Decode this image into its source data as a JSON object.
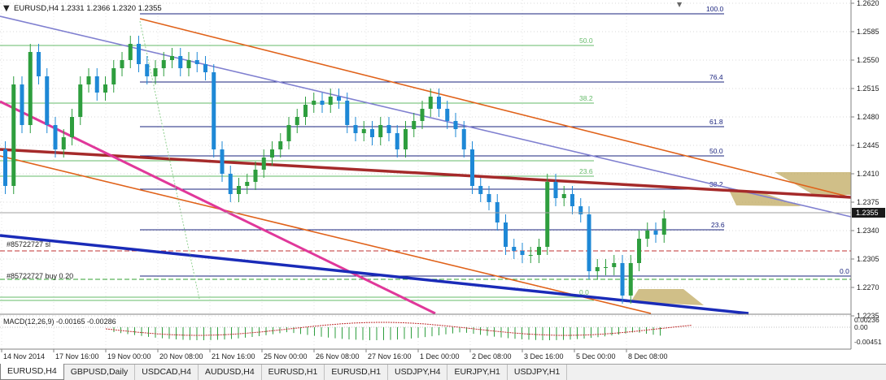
{
  "window": {
    "symbol_header": "EURUSD,H4  1.2331 1.2366 1.2320 1.2355"
  },
  "price_axis": {
    "labels": [
      "1.2620",
      "1.2585",
      "1.2550",
      "1.2515",
      "1.2480",
      "1.2445",
      "1.2410",
      "1.2375",
      "1.2340",
      "1.2305",
      "1.2270",
      "1.2235"
    ],
    "current_price": "1.2355"
  },
  "fibonacci": {
    "upper_levels": [
      {
        "label": "100.0",
        "color": "#1a237e"
      },
      {
        "label": "50.0",
        "color": "#66bb6a"
      },
      {
        "label": "76.4",
        "color": "#1a237e"
      },
      {
        "label": "38.2",
        "color": "#66bb6a"
      },
      {
        "label": "61.8",
        "color": "#1a237e"
      },
      {
        "label": "50.0",
        "color": "#1a237e"
      },
      {
        "label": "23.6",
        "color": "#66bb6a"
      },
      {
        "label": "38.2",
        "color": "#1a237e"
      },
      {
        "label": "23.6",
        "color": "#1a237e"
      },
      {
        "label": "0.0",
        "color": "#66bb6a"
      },
      {
        "label": "0.0",
        "color": "#1a237e"
      }
    ],
    "right_zero_label": "0.0"
  },
  "orders": {
    "sl_label": "#85722727 sl",
    "buy_label": "#85722727 buy 0.20"
  },
  "macd": {
    "label": "MACD(12,26,9) -0.00165 -0.00286",
    "axis_labels": [
      "0.00236",
      "0.00",
      "-0.00451"
    ]
  },
  "time_axis": {
    "labels": [
      "14 Nov 2014",
      "17 Nov 16:00",
      "19 Nov 00:00",
      "20 Nov 08:00",
      "21 Nov 16:00",
      "25 Nov 00:00",
      "26 Nov 08:00",
      "27 Nov 16:00",
      "1 Dec 00:00",
      "2 Dec 08:00",
      "3 Dec 16:00",
      "5 Dec 00:00",
      "8 Dec 08:00"
    ]
  },
  "tabs": [
    "EURUSD,H4",
    "GBPUSD,Daily",
    "USDCAD,H4",
    "AUDUSD,H4",
    "EURUSD,H1",
    "EURUSD,H1",
    "USDJPY,H4",
    "EURJPY,H1",
    "USDJPY,H1"
  ],
  "colors": {
    "bull_candle": "#2e9e3e",
    "bear_candle": "#1e88d6",
    "channel_orange": "#e0621a",
    "trend_brown": "#a52a2a",
    "trend_magenta": "#e0389a",
    "trend_blue": "#1a2bb8",
    "trend_lavender": "#8080d0"
  }
}
